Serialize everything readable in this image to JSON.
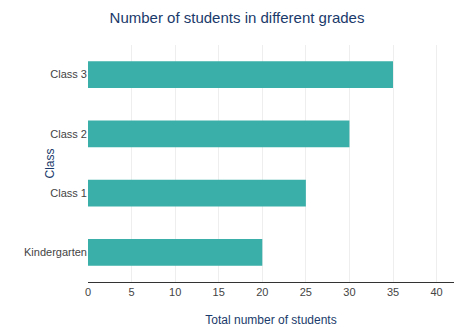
{
  "chart_data": {
    "type": "bar",
    "orientation": "horizontal",
    "title": "Number of students in different grades",
    "xlabel": "Total number of students",
    "ylabel": "Class",
    "categories": [
      "Kindergarten",
      "Class 1",
      "Class 2",
      "Class 3"
    ],
    "values": [
      20,
      25,
      30,
      35
    ],
    "color": "#3aafa9",
    "xlim": [
      0,
      42
    ],
    "xticks": [
      0,
      5,
      10,
      15,
      20,
      25,
      30,
      35,
      40
    ],
    "grid": true
  }
}
